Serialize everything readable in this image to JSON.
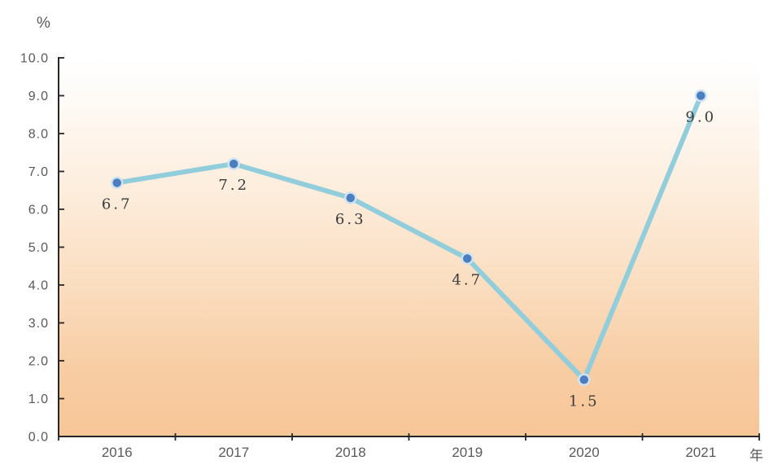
{
  "chart_data": {
    "type": "line",
    "title": "",
    "x_unit": "年",
    "y_unit": "%",
    "categories": [
      "2016",
      "2017",
      "2018",
      "2019",
      "2020",
      "2021"
    ],
    "series": [
      {
        "name": "percent",
        "values": [
          6.7,
          7.2,
          6.3,
          4.7,
          1.5,
          9.0
        ]
      }
    ],
    "data_labels": [
      "6.7",
      "7.2",
      "6.3",
      "4.7",
      "1.5",
      "9.0"
    ],
    "y_ticks": [
      "0.0",
      "1.0",
      "2.0",
      "3.0",
      "4.0",
      "5.0",
      "6.0",
      "7.0",
      "8.0",
      "9.0",
      "10.0"
    ],
    "ylim": [
      0,
      10
    ],
    "grid": false,
    "legend": "none",
    "colors": {
      "line": "#92cddc",
      "marker": "#4b7ec1",
      "marker_ring": "#cfe2f0",
      "axis": "#262626",
      "tick_label": "#595959",
      "data_label": "#3b3b3b",
      "bg_top": "#ffffff",
      "bg_bottom": "#f7c697"
    }
  }
}
